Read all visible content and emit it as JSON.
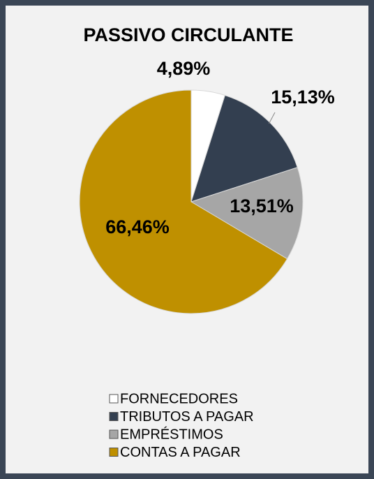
{
  "chart_data": {
    "type": "pie",
    "title": "PASSIVO CIRCULANTE",
    "categories": [
      "FORNECEDORES",
      "TRIBUTOS A PAGAR",
      "EMPRÉSTIMOS",
      "CONTAS A PAGAR"
    ],
    "values": [
      4.89,
      15.13,
      13.51,
      66.46
    ],
    "value_labels": [
      "4,89%",
      "15,13%",
      "13,51%",
      "66,46%"
    ],
    "colors": [
      "#ffffff",
      "#333f50",
      "#a6a6a6",
      "#bf9000"
    ],
    "legend": "bottom"
  }
}
